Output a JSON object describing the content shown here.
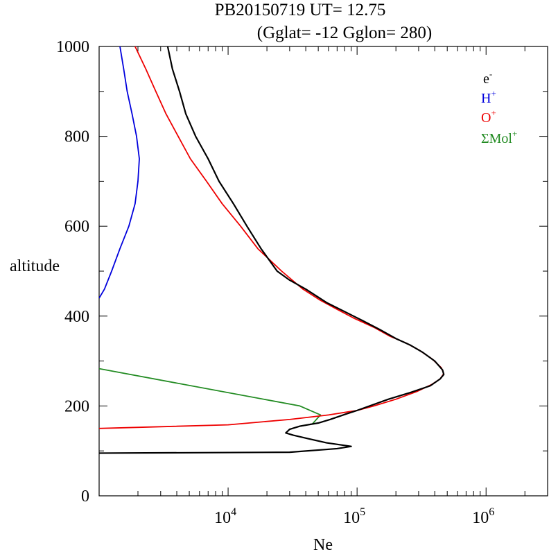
{
  "chart_data": {
    "type": "line",
    "title_line1": "PB20150719   UT=  12.75",
    "title_line2": "(Gglat= -12   Gglon=  280)",
    "xlabel": "Ne",
    "ylabel": "altitude",
    "x_scale": "log",
    "xlim": [
      1000,
      3000000
    ],
    "ylim": [
      0,
      1000
    ],
    "x_ticks": [
      {
        "base": "10",
        "exp": "4",
        "value": 10000
      },
      {
        "base": "10",
        "exp": "5",
        "value": 100000
      },
      {
        "base": "10",
        "exp": "6",
        "value": 1000000
      }
    ],
    "y_ticks": [
      "0",
      "200",
      "400",
      "600",
      "800",
      "1000"
    ],
    "legend_position": "top-right",
    "legend": [
      {
        "base": "e",
        "sup": "-",
        "color": "#000000"
      },
      {
        "base": "H",
        "sup": "+",
        "color": "#0000dd"
      },
      {
        "base": "O",
        "sup": "+",
        "color": "#ee0000"
      },
      {
        "base": "ΣMol",
        "sup": "+",
        "color": "#228b22"
      }
    ],
    "series": [
      {
        "color": "#000000",
        "points": [
          [
            1000,
            95
          ],
          [
            30000,
            97
          ],
          [
            70000,
            105
          ],
          [
            90000,
            110
          ],
          [
            58000,
            118
          ],
          [
            42000,
            127
          ],
          [
            32000,
            135
          ],
          [
            28000,
            140
          ],
          [
            30000,
            148
          ],
          [
            36000,
            155
          ],
          [
            50000,
            162
          ],
          [
            62000,
            170
          ],
          [
            82000,
            182
          ],
          [
            100000,
            190
          ],
          [
            125000,
            200
          ],
          [
            175000,
            215
          ],
          [
            260000,
            230
          ],
          [
            370000,
            245
          ],
          [
            440000,
            260
          ],
          [
            470000,
            270
          ],
          [
            460000,
            280
          ],
          [
            400000,
            300
          ],
          [
            320000,
            320
          ],
          [
            260000,
            335
          ],
          [
            200000,
            350
          ],
          [
            150000,
            370
          ],
          [
            110000,
            390
          ],
          [
            80000,
            410
          ],
          [
            58000,
            430
          ],
          [
            40000,
            460
          ],
          [
            30000,
            480
          ],
          [
            24000,
            500
          ],
          [
            18000,
            550
          ],
          [
            14000,
            600
          ],
          [
            11000,
            650
          ],
          [
            8500,
            700
          ],
          [
            7000,
            750
          ],
          [
            5600,
            800
          ],
          [
            4700,
            850
          ],
          [
            4200,
            900
          ],
          [
            3700,
            950
          ],
          [
            3400,
            1000
          ]
        ]
      },
      {
        "color": "#0000dd",
        "points": [
          [
            1000,
            440
          ],
          [
            1100,
            460
          ],
          [
            1250,
            500
          ],
          [
            1450,
            550
          ],
          [
            1700,
            600
          ],
          [
            1900,
            650
          ],
          [
            2000,
            700
          ],
          [
            2050,
            750
          ],
          [
            1950,
            800
          ],
          [
            1800,
            850
          ],
          [
            1650,
            900
          ],
          [
            1550,
            950
          ],
          [
            1450,
            1000
          ]
        ]
      },
      {
        "color": "#ee0000",
        "points": [
          [
            1000,
            150
          ],
          [
            10000,
            158
          ],
          [
            30000,
            170
          ],
          [
            60000,
            180
          ],
          [
            100000,
            190
          ],
          [
            135000,
            200
          ],
          [
            200000,
            215
          ],
          [
            290000,
            232
          ],
          [
            380000,
            248
          ],
          [
            440000,
            260
          ],
          [
            470000,
            272
          ],
          [
            450000,
            285
          ],
          [
            380000,
            305
          ],
          [
            300000,
            325
          ],
          [
            240000,
            340
          ],
          [
            180000,
            355
          ],
          [
            135000,
            375
          ],
          [
            95000,
            395
          ],
          [
            70000,
            415
          ],
          [
            52000,
            435
          ],
          [
            38000,
            460
          ],
          [
            26000,
            500
          ],
          [
            17000,
            550
          ],
          [
            12500,
            600
          ],
          [
            9000,
            650
          ],
          [
            6800,
            700
          ],
          [
            5100,
            750
          ],
          [
            4100,
            800
          ],
          [
            3300,
            850
          ],
          [
            2750,
            900
          ],
          [
            2300,
            950
          ],
          [
            1900,
            1000
          ]
        ]
      },
      {
        "color": "#228b22",
        "points": [
          [
            1000,
            283
          ],
          [
            36000,
            200
          ],
          [
            52000,
            180
          ],
          [
            45000,
            160
          ],
          [
            36000,
            155
          ]
        ]
      }
    ]
  }
}
